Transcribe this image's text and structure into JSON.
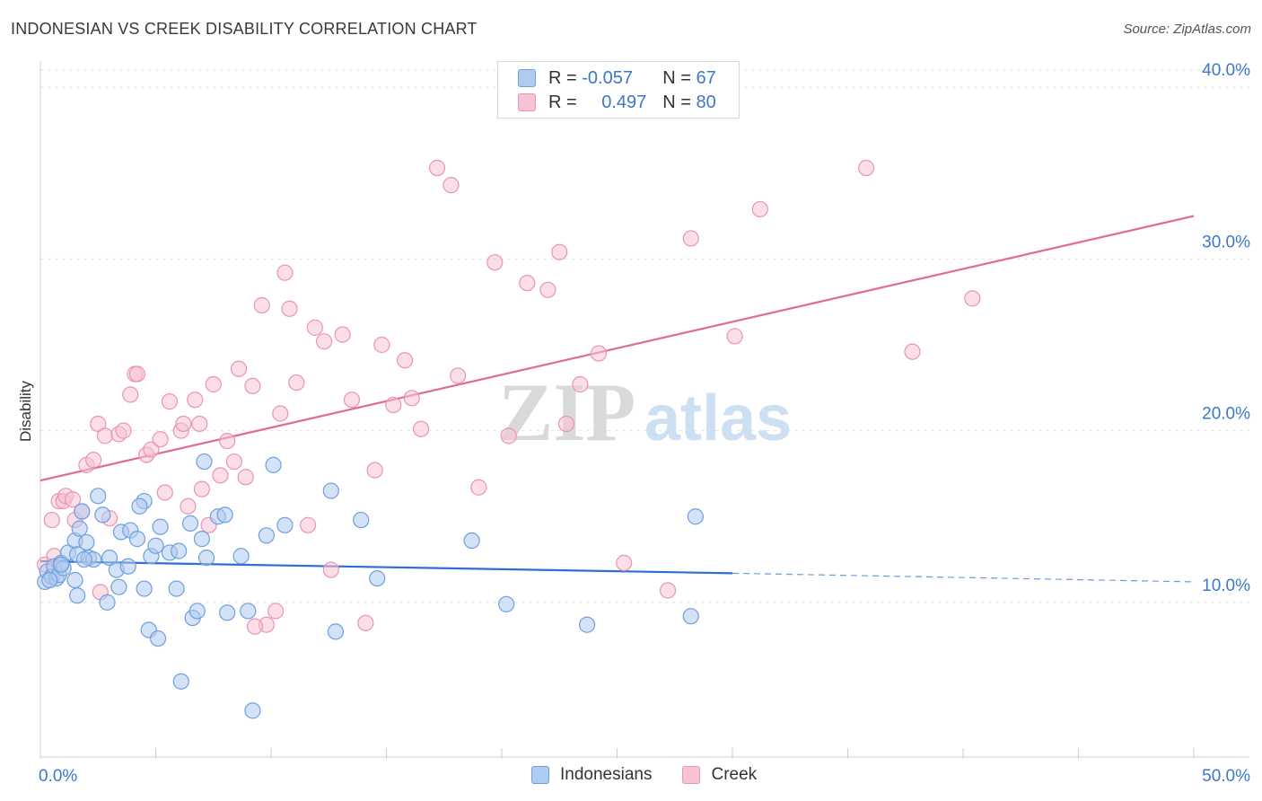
{
  "header": {
    "title": "INDONESIAN VS CREEK DISABILITY CORRELATION CHART",
    "source": "Source: ZipAtlas.com"
  },
  "watermark": {
    "left": "ZIP",
    "right": "atlas"
  },
  "legend": {
    "rows": [
      {
        "r_label": "R = ",
        "r_value": "-0.057",
        "n_label": "N = ",
        "n_value": "67"
      },
      {
        "r_label": "R = ",
        "r_value": "0.497",
        "n_label": "N = ",
        "n_value": "80"
      }
    ]
  },
  "colors": {
    "indonesians_fill": "#aecbf0",
    "indonesians_stroke": "#6f9fdc",
    "indonesians_line": "#2f6fcf",
    "creek_fill": "#f7c3d3",
    "creek_stroke": "#e995b0",
    "creek_line": "#e06b93",
    "tick_label": "#3b78c8",
    "grid": "#e2e2e2"
  },
  "chart_data": {
    "type": "scatter",
    "title": "INDONESIAN VS CREEK DISABILITY CORRELATION CHART",
    "xlabel": "",
    "ylabel": "Disability",
    "xlim": [
      0,
      50
    ],
    "ylim": [
      1,
      41
    ],
    "x_ticks": [
      0,
      50
    ],
    "x_tick_labels": [
      "0.0%",
      "50.0%"
    ],
    "y_ticks": [
      10,
      20,
      30,
      40
    ],
    "y_tick_labels": [
      "10.0%",
      "20.0%",
      "30.0%",
      "40.0%"
    ],
    "grid": true,
    "legend_position": "bottom",
    "series": [
      {
        "name": "Indonesians",
        "r": -0.057,
        "n": 67,
        "trend": {
          "x0": 0,
          "y0": 12.4,
          "x1": 30,
          "y1": 11.7,
          "dashed_to_x": 50,
          "dashed_to_y": 11.2
        },
        "points": [
          [
            0.2,
            11.2
          ],
          [
            0.3,
            11.8
          ],
          [
            0.5,
            11.5
          ],
          [
            0.6,
            12.1
          ],
          [
            0.7,
            11.4
          ],
          [
            0.8,
            11.6
          ],
          [
            0.9,
            12.3
          ],
          [
            1.0,
            12.0
          ],
          [
            1.2,
            12.9
          ],
          [
            1.5,
            13.6
          ],
          [
            1.6,
            12.8
          ],
          [
            1.7,
            14.3
          ],
          [
            1.8,
            15.3
          ],
          [
            2.0,
            13.5
          ],
          [
            2.1,
            12.6
          ],
          [
            2.3,
            12.5
          ],
          [
            2.5,
            16.2
          ],
          [
            2.7,
            15.1
          ],
          [
            3.0,
            12.6
          ],
          [
            3.3,
            11.9
          ],
          [
            3.5,
            14.1
          ],
          [
            3.8,
            12.1
          ],
          [
            3.9,
            14.2
          ],
          [
            4.2,
            13.7
          ],
          [
            4.5,
            15.9
          ],
          [
            4.8,
            12.7
          ],
          [
            5.0,
            13.3
          ],
          [
            5.2,
            14.4
          ],
          [
            5.6,
            12.9
          ],
          [
            6.0,
            13.0
          ],
          [
            6.5,
            14.6
          ],
          [
            7.0,
            13.7
          ],
          [
            7.2,
            12.6
          ],
          [
            7.7,
            15.0
          ],
          [
            8.0,
            15.1
          ],
          [
            8.7,
            12.7
          ],
          [
            9.8,
            13.9
          ],
          [
            10.1,
            18.0
          ],
          [
            10.6,
            14.5
          ],
          [
            12.6,
            16.5
          ],
          [
            13.9,
            14.8
          ],
          [
            14.6,
            11.4
          ],
          [
            18.7,
            13.6
          ],
          [
            20.2,
            9.9
          ],
          [
            23.7,
            8.7
          ],
          [
            28.2,
            9.2
          ],
          [
            28.4,
            15.0
          ],
          [
            1.5,
            11.3
          ],
          [
            1.6,
            10.4
          ],
          [
            2.9,
            10.0
          ],
          [
            3.4,
            10.9
          ],
          [
            4.5,
            10.8
          ],
          [
            5.9,
            10.8
          ],
          [
            6.6,
            9.1
          ],
          [
            6.8,
            9.5
          ],
          [
            8.1,
            9.4
          ],
          [
            9.0,
            9.5
          ],
          [
            4.7,
            8.4
          ],
          [
            5.1,
            7.9
          ],
          [
            12.8,
            8.3
          ],
          [
            6.1,
            5.4
          ],
          [
            9.2,
            3.7
          ],
          [
            0.4,
            11.3
          ],
          [
            7.1,
            18.2
          ],
          [
            4.3,
            15.6
          ],
          [
            1.9,
            12.5
          ],
          [
            0.9,
            12.2
          ]
        ]
      },
      {
        "name": "Creek",
        "r": 0.497,
        "n": 80,
        "trend": {
          "x0": 0,
          "y0": 17.1,
          "x1": 50,
          "y1": 32.5
        },
        "points": [
          [
            0.2,
            12.2
          ],
          [
            0.5,
            14.8
          ],
          [
            0.8,
            15.9
          ],
          [
            1.0,
            15.9
          ],
          [
            1.1,
            16.2
          ],
          [
            1.4,
            16.0
          ],
          [
            1.5,
            14.8
          ],
          [
            1.8,
            15.3
          ],
          [
            2.0,
            18.0
          ],
          [
            2.3,
            18.3
          ],
          [
            2.5,
            20.4
          ],
          [
            2.8,
            19.7
          ],
          [
            3.0,
            14.9
          ],
          [
            3.4,
            19.8
          ],
          [
            3.6,
            20.0
          ],
          [
            3.9,
            22.1
          ],
          [
            4.1,
            23.3
          ],
          [
            4.6,
            18.6
          ],
          [
            4.8,
            18.9
          ],
          [
            5.2,
            19.5
          ],
          [
            5.4,
            16.4
          ],
          [
            5.6,
            21.7
          ],
          [
            6.1,
            20.0
          ],
          [
            6.2,
            20.4
          ],
          [
            6.4,
            15.6
          ],
          [
            6.7,
            21.8
          ],
          [
            7.0,
            16.6
          ],
          [
            7.3,
            14.5
          ],
          [
            7.5,
            22.7
          ],
          [
            7.8,
            17.4
          ],
          [
            8.1,
            19.4
          ],
          [
            8.4,
            18.2
          ],
          [
            8.6,
            23.6
          ],
          [
            8.9,
            17.3
          ],
          [
            9.2,
            22.6
          ],
          [
            9.6,
            27.3
          ],
          [
            9.8,
            8.7
          ],
          [
            10.2,
            9.5
          ],
          [
            10.4,
            21.0
          ],
          [
            10.6,
            29.2
          ],
          [
            10.8,
            27.1
          ],
          [
            11.1,
            22.8
          ],
          [
            11.6,
            14.5
          ],
          [
            11.9,
            26.0
          ],
          [
            12.3,
            25.2
          ],
          [
            12.6,
            11.9
          ],
          [
            13.1,
            25.6
          ],
          [
            13.5,
            21.8
          ],
          [
            14.1,
            8.8
          ],
          [
            14.5,
            17.7
          ],
          [
            14.8,
            25.0
          ],
          [
            15.3,
            21.5
          ],
          [
            15.8,
            24.1
          ],
          [
            16.1,
            21.9
          ],
          [
            16.5,
            20.1
          ],
          [
            17.2,
            35.3
          ],
          [
            17.8,
            34.3
          ],
          [
            18.1,
            23.2
          ],
          [
            19.0,
            16.7
          ],
          [
            19.7,
            29.8
          ],
          [
            20.3,
            19.7
          ],
          [
            21.1,
            28.6
          ],
          [
            22.0,
            28.2
          ],
          [
            22.5,
            30.4
          ],
          [
            22.8,
            20.4
          ],
          [
            23.4,
            22.7
          ],
          [
            24.2,
            24.5
          ],
          [
            25.3,
            12.3
          ],
          [
            27.2,
            10.7
          ],
          [
            28.2,
            31.2
          ],
          [
            30.1,
            25.5
          ],
          [
            31.2,
            32.9
          ],
          [
            35.8,
            35.3
          ],
          [
            37.8,
            24.6
          ],
          [
            40.4,
            27.7
          ],
          [
            4.2,
            23.3
          ],
          [
            6.9,
            20.4
          ],
          [
            2.6,
            10.6
          ],
          [
            9.3,
            8.6
          ],
          [
            0.6,
            12.7
          ]
        ]
      }
    ]
  },
  "bottom_legend": {
    "items": [
      "Indonesians",
      "Creek"
    ]
  }
}
